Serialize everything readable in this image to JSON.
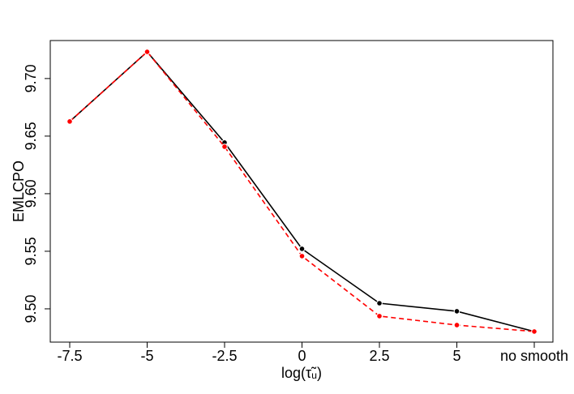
{
  "chart_data": {
    "type": "line",
    "xlabel": "log(τ̃ᵤ)",
    "ylabel": "EMLCPO",
    "categories": [
      "-7.5",
      "-5",
      "-2.5",
      "0",
      "2.5",
      "5",
      "no smooth"
    ],
    "series": [
      {
        "color": "#000000",
        "linestyle": "solid",
        "values": [
          9.6627,
          9.7232,
          9.6444,
          9.5521,
          9.5049,
          9.4979,
          9.4803
        ]
      },
      {
        "color": "#ff0000",
        "linestyle": "dashed",
        "values": [
          9.6627,
          9.7232,
          9.6408,
          9.5458,
          9.4937,
          9.4859,
          9.4803
        ]
      }
    ],
    "ylim": [
      9.4711,
      9.733
    ],
    "yticks": [
      {
        "value": 9.5,
        "label": "9.50"
      },
      {
        "value": 9.55,
        "label": "9.55"
      },
      {
        "value": 9.6,
        "label": "9.60"
      },
      {
        "value": 9.65,
        "label": "9.65"
      },
      {
        "value": 9.7,
        "label": "9.70"
      }
    ]
  }
}
